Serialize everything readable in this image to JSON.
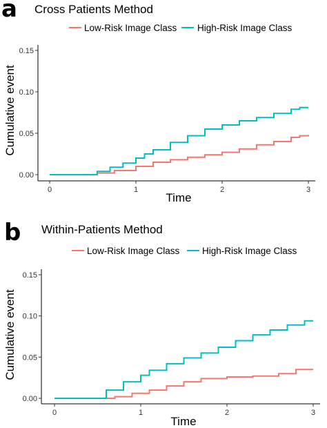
{
  "figure": {
    "panels": [
      {
        "letter": "a",
        "title": "Cross Patients Method",
        "chart_data": {
          "type": "line",
          "step": true,
          "title": "Cross Patients Method",
          "xlabel": "Time",
          "ylabel": "Cumulative event",
          "xlim": [
            0,
            3
          ],
          "ylim": [
            0,
            0.15
          ],
          "xticks": [
            0,
            1,
            2,
            3
          ],
          "xtick_labels": [
            "0",
            "1",
            "2",
            "3"
          ],
          "yticks": [
            0,
            0.05,
            0.1,
            0.15
          ],
          "ytick_labels": [
            "0.00",
            "0.05",
            "0.10",
            "0.15"
          ],
          "grid": false,
          "legend_position": "top",
          "series": [
            {
              "name": "Low-Risk Image Class",
              "color": "#F8766D",
              "x": [
                0,
                0.42,
                0.55,
                0.75,
                1.0,
                1.2,
                1.4,
                1.6,
                1.8,
                2.0,
                2.2,
                2.4,
                2.6,
                2.8,
                2.9,
                3.0
              ],
              "y": [
                0,
                0,
                0.002,
                0.005,
                0.01,
                0.015,
                0.018,
                0.021,
                0.024,
                0.027,
                0.031,
                0.036,
                0.04,
                0.045,
                0.047,
                0.048
              ]
            },
            {
              "name": "High-Risk Image Class",
              "color": "#00BFC4",
              "x": [
                0,
                0.42,
                0.55,
                0.7,
                0.85,
                1.0,
                1.1,
                1.2,
                1.4,
                1.6,
                1.8,
                2.0,
                2.2,
                2.4,
                2.6,
                2.8,
                2.9,
                3.0
              ],
              "y": [
                0,
                0,
                0.004,
                0.009,
                0.014,
                0.02,
                0.025,
                0.03,
                0.039,
                0.047,
                0.055,
                0.06,
                0.065,
                0.069,
                0.074,
                0.079,
                0.081,
                0.081
              ]
            }
          ]
        }
      },
      {
        "letter": "b",
        "title": "Within-Patients Method",
        "chart_data": {
          "type": "line",
          "step": true,
          "title": "Within-Patients Method",
          "xlabel": "Time",
          "ylabel": "Cumulative event",
          "xlim": [
            0,
            3
          ],
          "ylim": [
            0,
            0.15
          ],
          "xticks": [
            0,
            1,
            2,
            3
          ],
          "xtick_labels": [
            "0",
            "1",
            "2",
            "3"
          ],
          "yticks": [
            0,
            0.05,
            0.1,
            0.15
          ],
          "ytick_labels": [
            "0.00",
            "0.05",
            "0.10",
            "0.15"
          ],
          "grid": false,
          "legend_position": "top",
          "series": [
            {
              "name": "Low-Risk Image Class",
              "color": "#F8766D",
              "x": [
                0,
                0.42,
                0.7,
                0.9,
                1.1,
                1.3,
                1.5,
                1.7,
                2.0,
                2.3,
                2.6,
                2.8,
                3.0
              ],
              "y": [
                0,
                0,
                0.002,
                0.006,
                0.01,
                0.015,
                0.02,
                0.024,
                0.026,
                0.027,
                0.03,
                0.035,
                0.035
              ]
            },
            {
              "name": "High-Risk Image Class",
              "color": "#00BFC4",
              "x": [
                0,
                0.42,
                0.6,
                0.8,
                1.0,
                1.1,
                1.3,
                1.5,
                1.7,
                1.9,
                2.1,
                2.3,
                2.5,
                2.7,
                2.9,
                3.0
              ],
              "y": [
                0,
                0,
                0.01,
                0.02,
                0.028,
                0.034,
                0.042,
                0.049,
                0.055,
                0.062,
                0.07,
                0.077,
                0.083,
                0.089,
                0.094,
                0.094
              ]
            }
          ]
        }
      }
    ]
  }
}
